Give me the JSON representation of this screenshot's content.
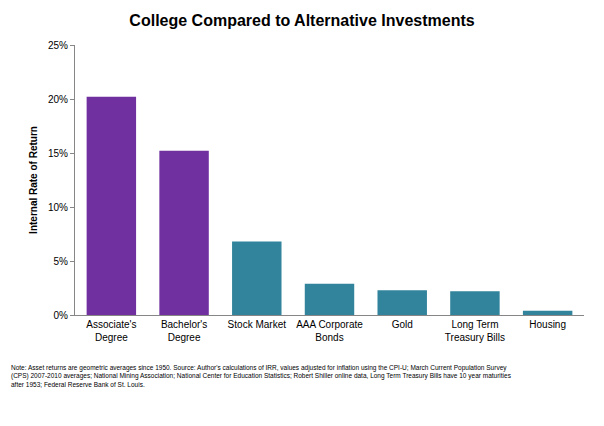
{
  "chart_data": {
    "type": "bar",
    "title": "College Compared to Alternative Investments",
    "y_label": "Internal Rate of Return",
    "categories": [
      "Associate's Degree",
      "Bachelor's Degree",
      "Stock Market",
      "AAA Corporate Bonds",
      "Gold",
      "Long Term Treasury Bills",
      "Housing"
    ],
    "values": [
      20.2,
      15.2,
      6.8,
      2.9,
      2.3,
      2.2,
      0.4
    ],
    "colors": [
      "#7030a0",
      "#7030a0",
      "#31849b",
      "#31849b",
      "#31849b",
      "#31849b",
      "#31849b"
    ],
    "ylim": [
      0,
      25
    ],
    "yticks": [
      {
        "value": 0,
        "label": "0%"
      },
      {
        "value": 5,
        "label": "5%"
      },
      {
        "value": 10,
        "label": "10%"
      },
      {
        "value": 15,
        "label": "15%"
      },
      {
        "value": 20,
        "label": "20%"
      },
      {
        "value": 25,
        "label": "25%"
      }
    ],
    "grid": false,
    "note": [
      "Note: Asset returns are geometric averages since 1950. Source: Author's calculations of IRR, values adjusted for inflation using the CPI-U; March Current Population Survey",
      "(CPS) 2007-2010 averages; National Mining Association; National Center for Education Statistics; Robert Shiller online data, Long Term Treasury Bills have 10 year maturities",
      "after 1953; Federal Reserve Bank of St. Louis."
    ]
  }
}
